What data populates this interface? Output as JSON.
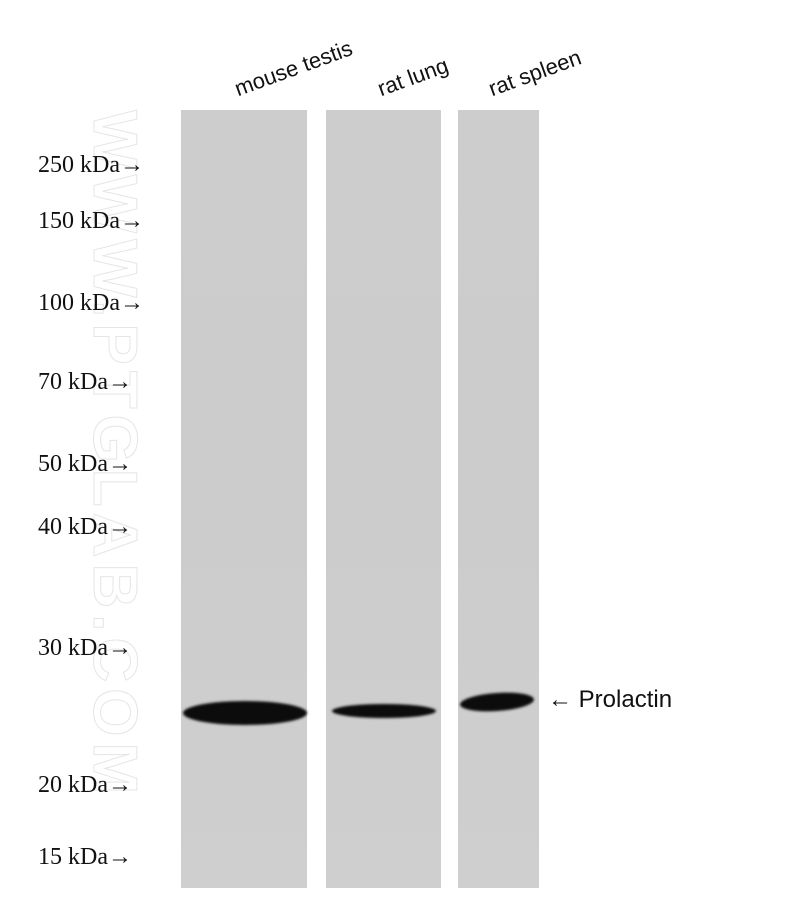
{
  "lanes": [
    "mouse testis",
    "rat lung",
    "rat spleen"
  ],
  "markers": [
    "250 kDa→",
    "150 kDa→",
    "100 kDa→",
    "70 kDa→",
    "50 kDa→",
    "40 kDa→",
    "30 kDa→",
    "20 kDa→",
    "15 kDa→"
  ],
  "band_label": "← Prolactin",
  "watermark": "WWW.PTGLAB.COM"
}
